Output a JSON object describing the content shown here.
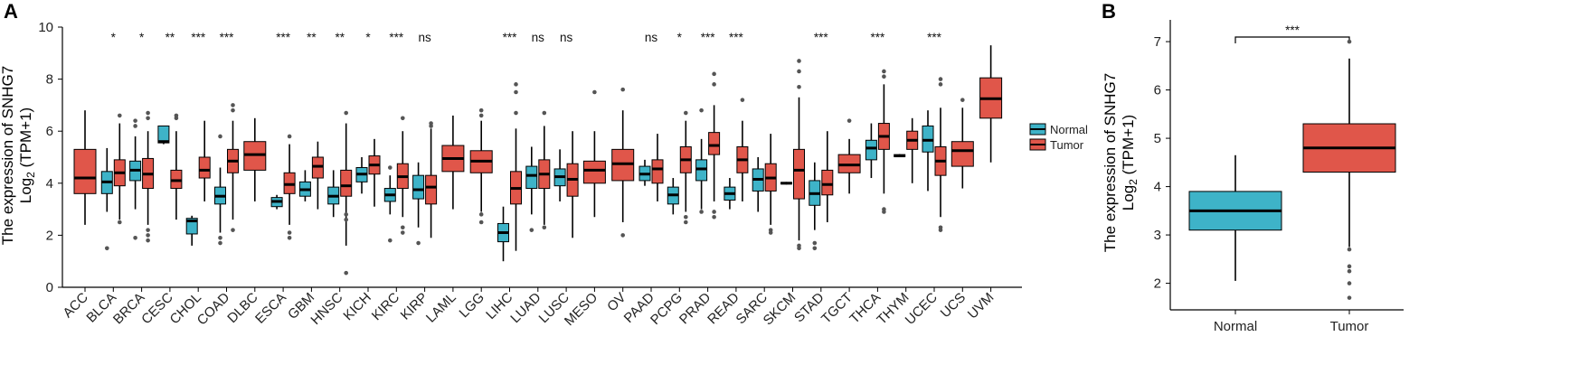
{
  "colors": {
    "normal": "#3eb3c8",
    "tumor": "#e0564a"
  },
  "chart_data": [
    {
      "panel_label": "A",
      "type": "boxplot",
      "ylabel_line1": "The expression of SNHG7",
      "ylabel_line2_prefix": "Log",
      "ylabel_line2_sub": "2",
      "ylabel_line2_suffix": " (TPM+1)",
      "ylim": [
        0,
        10
      ],
      "yticks": [
        0,
        2,
        4,
        6,
        8,
        10
      ],
      "legend": {
        "position": "right",
        "normal_label": "Normal",
        "tumor_label": "Tumor"
      },
      "groups": [
        {
          "label": "ACC",
          "sig": "",
          "tumor": {
            "min": 2.4,
            "q1": 3.6,
            "median": 4.2,
            "q3": 5.3,
            "max": 6.8,
            "outliers": []
          }
        },
        {
          "label": "BLCA",
          "sig": "*",
          "normal": {
            "min": 2.9,
            "q1": 3.6,
            "median": 4.05,
            "q3": 4.45,
            "max": 5.35,
            "outliers": [
              1.5
            ]
          },
          "tumor": {
            "min": 2.6,
            "q1": 3.9,
            "median": 4.4,
            "q3": 4.9,
            "max": 6.3,
            "outliers": [
              6.6,
              2.5
            ]
          }
        },
        {
          "label": "BRCA",
          "sig": "*",
          "normal": {
            "min": 3.0,
            "q1": 4.1,
            "median": 4.5,
            "q3": 4.85,
            "max": 5.8,
            "outliers": [
              1.9,
              6.2,
              6.4
            ]
          },
          "tumor": {
            "min": 2.4,
            "q1": 3.8,
            "median": 4.35,
            "q3": 4.95,
            "max": 6.0,
            "outliers": [
              6.5,
              6.7,
              2.2,
              2.0,
              1.8
            ]
          }
        },
        {
          "label": "CESC",
          "sig": "**",
          "normal": {
            "min": 5.5,
            "q1": 5.55,
            "median": 5.6,
            "q3": 6.2,
            "max": 6.2,
            "outliers": []
          },
          "tumor": {
            "min": 2.6,
            "q1": 3.8,
            "median": 4.1,
            "q3": 4.5,
            "max": 6.0,
            "outliers": [
              6.5,
              6.6
            ]
          }
        },
        {
          "label": "CHOL",
          "sig": "***",
          "normal": {
            "min": 1.6,
            "q1": 2.05,
            "median": 2.55,
            "q3": 2.65,
            "max": 2.75,
            "outliers": []
          },
          "tumor": {
            "min": 3.3,
            "q1": 4.2,
            "median": 4.5,
            "q3": 5.0,
            "max": 6.4,
            "outliers": []
          }
        },
        {
          "label": "COAD",
          "sig": "***",
          "normal": {
            "min": 2.1,
            "q1": 3.2,
            "median": 3.5,
            "q3": 3.85,
            "max": 4.6,
            "outliers": [
              5.8,
              1.7,
              1.9
            ]
          },
          "tumor": {
            "min": 2.6,
            "q1": 4.4,
            "median": 4.85,
            "q3": 5.3,
            "max": 6.4,
            "outliers": [
              6.8,
              7.0,
              2.2
            ]
          }
        },
        {
          "label": "DLBC",
          "sig": "",
          "tumor": {
            "min": 3.3,
            "q1": 4.5,
            "median": 5.1,
            "q3": 5.6,
            "max": 6.5,
            "outliers": []
          }
        },
        {
          "label": "ESCA",
          "sig": "***",
          "normal": {
            "min": 3.0,
            "q1": 3.1,
            "median": 3.3,
            "q3": 3.45,
            "max": 3.55,
            "outliers": []
          },
          "tumor": {
            "min": 2.4,
            "q1": 3.6,
            "median": 3.95,
            "q3": 4.4,
            "max": 5.5,
            "outliers": [
              5.8,
              2.1,
              1.9
            ]
          }
        },
        {
          "label": "GBM",
          "sig": "**",
          "normal": {
            "min": 3.3,
            "q1": 3.5,
            "median": 3.75,
            "q3": 4.05,
            "max": 4.5,
            "outliers": []
          },
          "tumor": {
            "min": 3.0,
            "q1": 4.2,
            "median": 4.65,
            "q3": 5.0,
            "max": 5.6,
            "outliers": []
          }
        },
        {
          "label": "HNSC",
          "sig": "**",
          "normal": {
            "min": 2.7,
            "q1": 3.2,
            "median": 3.5,
            "q3": 3.85,
            "max": 4.5,
            "outliers": []
          },
          "tumor": {
            "min": 1.6,
            "q1": 3.5,
            "median": 3.9,
            "q3": 4.5,
            "max": 6.3,
            "outliers": [
              0.55,
              2.8,
              2.6,
              6.7
            ]
          }
        },
        {
          "label": "KICH",
          "sig": "*",
          "normal": {
            "min": 3.6,
            "q1": 4.05,
            "median": 4.35,
            "q3": 4.6,
            "max": 5.0,
            "outliers": []
          },
          "tumor": {
            "min": 3.1,
            "q1": 4.35,
            "median": 4.7,
            "q3": 5.05,
            "max": 5.7,
            "outliers": []
          }
        },
        {
          "label": "KIRC",
          "sig": "***",
          "normal": {
            "min": 2.8,
            "q1": 3.3,
            "median": 3.55,
            "q3": 3.8,
            "max": 4.3,
            "outliers": [
              1.8,
              4.6
            ]
          },
          "tumor": {
            "min": 2.7,
            "q1": 3.8,
            "median": 4.25,
            "q3": 4.75,
            "max": 6.0,
            "outliers": [
              6.5,
              2.3,
              2.1
            ]
          }
        },
        {
          "label": "KIRP",
          "sig": "ns",
          "normal": {
            "min": 2.3,
            "q1": 3.4,
            "median": 3.75,
            "q3": 4.3,
            "max": 4.8,
            "outliers": [
              1.7
            ]
          },
          "tumor": {
            "min": 1.9,
            "q1": 3.2,
            "median": 3.85,
            "q3": 4.3,
            "max": 6.1,
            "outliers": [
              6.3,
              6.2
            ]
          }
        },
        {
          "label": "LAML",
          "sig": "",
          "tumor": {
            "min": 3.0,
            "q1": 4.45,
            "median": 4.95,
            "q3": 5.45,
            "max": 6.6,
            "outliers": []
          }
        },
        {
          "label": "LGG",
          "sig": "",
          "tumor": {
            "min": 2.9,
            "q1": 4.4,
            "median": 4.85,
            "q3": 5.25,
            "max": 6.4,
            "outliers": [
              6.8,
              6.6,
              2.8,
              2.5
            ]
          }
        },
        {
          "label": "LIHC",
          "sig": "***",
          "normal": {
            "min": 1.0,
            "q1": 1.75,
            "median": 2.1,
            "q3": 2.45,
            "max": 3.1,
            "outliers": []
          },
          "tumor": {
            "min": 1.4,
            "q1": 3.2,
            "median": 3.8,
            "q3": 4.45,
            "max": 6.1,
            "outliers": [
              7.8,
              7.5,
              6.7
            ]
          }
        },
        {
          "label": "LUAD",
          "sig": "ns",
          "normal": {
            "min": 2.8,
            "q1": 3.8,
            "median": 4.3,
            "q3": 4.65,
            "max": 5.4,
            "outliers": [
              2.2
            ]
          },
          "tumor": {
            "min": 2.4,
            "q1": 3.8,
            "median": 4.35,
            "q3": 4.9,
            "max": 6.2,
            "outliers": [
              6.7,
              2.3
            ]
          }
        },
        {
          "label": "LUSC",
          "sig": "ns",
          "normal": {
            "min": 3.3,
            "q1": 3.9,
            "median": 4.25,
            "q3": 4.55,
            "max": 5.3,
            "outliers": []
          },
          "tumor": {
            "min": 1.9,
            "q1": 3.5,
            "median": 4.15,
            "q3": 4.75,
            "max": 6.0,
            "outliers": []
          }
        },
        {
          "label": "MESO",
          "sig": "",
          "tumor": {
            "min": 2.7,
            "q1": 4.0,
            "median": 4.5,
            "q3": 4.85,
            "max": 6.0,
            "outliers": [
              7.5
            ]
          }
        },
        {
          "label": "OV",
          "sig": "",
          "tumor": {
            "min": 2.5,
            "q1": 4.1,
            "median": 4.75,
            "q3": 5.3,
            "max": 6.8,
            "outliers": [
              7.6,
              2.0
            ]
          }
        },
        {
          "label": "PAAD",
          "sig": "ns",
          "normal": {
            "min": 3.9,
            "q1": 4.1,
            "median": 4.35,
            "q3": 4.65,
            "max": 4.9,
            "outliers": []
          },
          "tumor": {
            "min": 3.3,
            "q1": 4.0,
            "median": 4.55,
            "q3": 4.9,
            "max": 5.9,
            "outliers": []
          }
        },
        {
          "label": "PCPG",
          "sig": "*",
          "normal": {
            "min": 2.8,
            "q1": 3.2,
            "median": 3.55,
            "q3": 3.85,
            "max": 4.2,
            "outliers": []
          },
          "tumor": {
            "min": 2.9,
            "q1": 4.4,
            "median": 4.9,
            "q3": 5.4,
            "max": 6.4,
            "outliers": [
              6.7,
              2.7,
              2.5
            ]
          }
        },
        {
          "label": "PRAD",
          "sig": "***",
          "normal": {
            "min": 3.0,
            "q1": 4.1,
            "median": 4.55,
            "q3": 4.9,
            "max": 5.7,
            "outliers": [
              6.8,
              2.9
            ]
          },
          "tumor": {
            "min": 3.3,
            "q1": 5.1,
            "median": 5.45,
            "q3": 5.95,
            "max": 7.0,
            "outliers": [
              8.2,
              7.8,
              2.9,
              2.7
            ]
          }
        },
        {
          "label": "READ",
          "sig": "***",
          "normal": {
            "min": 3.0,
            "q1": 3.35,
            "median": 3.6,
            "q3": 3.85,
            "max": 4.2,
            "outliers": []
          },
          "tumor": {
            "min": 3.3,
            "q1": 4.4,
            "median": 4.9,
            "q3": 5.4,
            "max": 6.4,
            "outliers": [
              7.2
            ]
          }
        },
        {
          "label": "SARC",
          "sig": "",
          "normal": {
            "min": 2.9,
            "q1": 3.7,
            "median": 4.15,
            "q3": 4.55,
            "max": 5.0,
            "outliers": []
          },
          "tumor": {
            "min": 2.4,
            "q1": 3.7,
            "median": 4.2,
            "q3": 4.75,
            "max": 5.9,
            "outliers": [
              2.2,
              2.1
            ]
          }
        },
        {
          "label": "SKCM",
          "sig": "",
          "normal": {
            "min": 3.95,
            "q1": 3.97,
            "median": 4.0,
            "q3": 4.03,
            "max": 4.05,
            "outliers": []
          },
          "tumor": {
            "min": 1.8,
            "q1": 3.4,
            "median": 4.5,
            "q3": 5.3,
            "max": 7.3,
            "outliers": [
              8.7,
              8.3,
              7.7,
              1.6,
              1.5
            ]
          }
        },
        {
          "label": "STAD",
          "sig": "***",
          "normal": {
            "min": 2.2,
            "q1": 3.15,
            "median": 3.6,
            "q3": 4.1,
            "max": 4.8,
            "outliers": [
              1.7,
              1.5
            ]
          },
          "tumor": {
            "min": 2.5,
            "q1": 3.55,
            "median": 3.95,
            "q3": 4.5,
            "max": 6.0,
            "outliers": []
          }
        },
        {
          "label": "TGCT",
          "sig": "",
          "tumor": {
            "min": 3.6,
            "q1": 4.4,
            "median": 4.7,
            "q3": 5.1,
            "max": 5.7,
            "outliers": [
              6.4
            ]
          }
        },
        {
          "label": "THCA",
          "sig": "***",
          "normal": {
            "min": 4.2,
            "q1": 4.9,
            "median": 5.35,
            "q3": 5.65,
            "max": 6.3,
            "outliers": []
          },
          "tumor": {
            "min": 3.6,
            "q1": 5.3,
            "median": 5.8,
            "q3": 6.3,
            "max": 7.8,
            "outliers": [
              8.3,
              8.1,
              3.0,
              2.9
            ]
          }
        },
        {
          "label": "THYM",
          "sig": "",
          "normal": {
            "min": 5.0,
            "q1": 5.02,
            "median": 5.05,
            "q3": 5.1,
            "max": 5.12,
            "outliers": []
          },
          "tumor": {
            "min": 4.0,
            "q1": 5.3,
            "median": 5.65,
            "q3": 6.0,
            "max": 6.5,
            "outliers": []
          }
        },
        {
          "label": "UCEC",
          "sig": "***",
          "normal": {
            "min": 3.7,
            "q1": 5.2,
            "median": 5.65,
            "q3": 6.2,
            "max": 6.8,
            "outliers": []
          },
          "tumor": {
            "min": 2.7,
            "q1": 4.3,
            "median": 4.85,
            "q3": 5.4,
            "max": 6.9,
            "outliers": [
              8.0,
              7.8,
              2.3,
              2.2
            ]
          }
        },
        {
          "label": "UCS",
          "sig": "",
          "tumor": {
            "min": 3.8,
            "q1": 4.65,
            "median": 5.25,
            "q3": 5.6,
            "max": 6.9,
            "outliers": [
              7.2
            ]
          }
        },
        {
          "label": "UVM",
          "sig": "",
          "tumor": {
            "min": 4.8,
            "q1": 6.5,
            "median": 7.25,
            "q3": 8.05,
            "max": 9.3,
            "outliers": []
          }
        }
      ]
    },
    {
      "panel_label": "B",
      "type": "boxplot",
      "ylabel_line1": "The expression of SNHG7",
      "ylabel_line2_prefix": "Log",
      "ylabel_line2_sub": "2",
      "ylabel_line2_suffix": " (TPM+1)",
      "ylim": [
        1.45,
        7.45
      ],
      "yticks": [
        2,
        3,
        4,
        5,
        6,
        7
      ],
      "categories": [
        "Normal",
        "Tumor"
      ],
      "sig": "***",
      "boxes": [
        {
          "name": "Normal",
          "min": 2.05,
          "q1": 3.1,
          "median": 3.5,
          "q3": 3.9,
          "max": 4.65,
          "outliers": []
        },
        {
          "name": "Tumor",
          "min": 2.75,
          "q1": 4.3,
          "median": 4.8,
          "q3": 5.3,
          "max": 6.65,
          "outliers": [
            7.0,
            2.7,
            2.35,
            2.25,
            2.0,
            1.7
          ]
        }
      ]
    }
  ]
}
